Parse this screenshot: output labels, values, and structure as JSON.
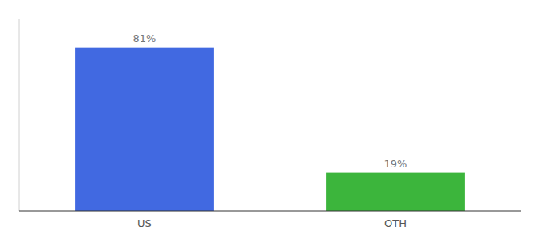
{
  "chart_data": {
    "type": "bar",
    "categories": [
      "US",
      "OTH"
    ],
    "values": [
      81,
      19
    ],
    "value_labels": [
      "81%",
      "19%"
    ],
    "colors": [
      "#4169e1",
      "#3cb53c"
    ],
    "ylim": [
      0,
      95
    ],
    "data_labels": true,
    "tick_labels": "x"
  }
}
